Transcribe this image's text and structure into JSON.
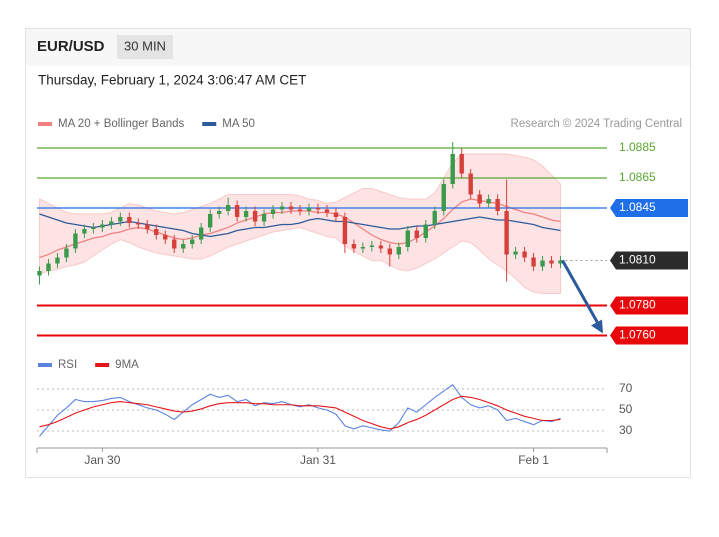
{
  "header": {
    "symbol": "EUR/USD",
    "interval": "30 MIN",
    "timestamp": "Thursday, February 1, 2024 3:06:47 AM CET"
  },
  "credit": "Research © 2024 Trading Central",
  "chart_data": [
    {
      "type": "candlestick",
      "categories": [
        null,
        null,
        null,
        null,
        null,
        null,
        null,
        "Jan 30",
        null,
        null,
        null,
        null,
        null,
        null,
        null,
        null,
        null,
        null,
        null,
        null,
        null,
        null,
        null,
        null,
        null,
        null,
        null,
        null,
        null,
        null,
        null,
        "Jan 31",
        null,
        null,
        null,
        null,
        null,
        null,
        null,
        null,
        null,
        null,
        null,
        null,
        null,
        null,
        null,
        null,
        null,
        null,
        null,
        null,
        null,
        null,
        null,
        "Feb 1",
        null,
        null,
        null
      ],
      "open": [
        1.08,
        1.0803,
        1.0808,
        1.0812,
        1.0818,
        1.0828,
        1.0831,
        1.0832,
        1.0834,
        1.0836,
        1.0839,
        1.0835,
        1.0834,
        1.0831,
        1.0827,
        1.0824,
        1.0818,
        1.0821,
        1.0824,
        1.0832,
        1.0841,
        1.0843,
        1.0847,
        1.0839,
        1.0843,
        1.0836,
        1.0841,
        1.0844,
        1.0846,
        1.0844,
        1.0843,
        1.0845,
        1.0844,
        1.0842,
        1.0839,
        1.0821,
        1.0818,
        1.0819,
        1.082,
        1.0818,
        1.0814,
        1.0819,
        1.083,
        1.0825,
        1.0834,
        1.0843,
        1.0861,
        1.0881,
        1.0868,
        1.0854,
        1.0848,
        1.0851,
        1.0843,
        1.0814,
        1.0816,
        1.0812,
        1.0806,
        1.081,
        1.0808
      ],
      "high": [
        1.0806,
        1.0811,
        1.0815,
        1.0821,
        1.0831,
        1.0834,
        1.0835,
        1.0837,
        1.0839,
        1.0842,
        1.0842,
        1.0838,
        1.0837,
        1.0834,
        1.083,
        1.0827,
        1.0824,
        1.0827,
        1.0835,
        1.0844,
        1.0846,
        1.0852,
        1.085,
        1.0846,
        1.0846,
        1.0844,
        1.0847,
        1.0849,
        1.0849,
        1.0847,
        1.0848,
        1.0848,
        1.0847,
        1.0845,
        1.0842,
        1.0824,
        1.0822,
        1.0823,
        1.0823,
        1.0821,
        1.0822,
        1.0833,
        1.0833,
        1.0837,
        1.0846,
        1.0864,
        1.0889,
        1.0885,
        1.0871,
        1.0857,
        1.0854,
        1.0854,
        1.0864,
        1.0819,
        1.0819,
        1.0815,
        1.0813,
        1.0813,
        1.0813
      ],
      "low": [
        1.0794,
        1.08,
        1.0805,
        1.0809,
        1.0815,
        1.0825,
        1.0828,
        1.0829,
        1.0831,
        1.0833,
        1.0832,
        1.0831,
        1.0828,
        1.0824,
        1.0821,
        1.0815,
        1.0815,
        1.0818,
        1.0821,
        1.0829,
        1.0838,
        1.084,
        1.0836,
        1.0836,
        1.0833,
        1.0833,
        1.0838,
        1.0841,
        1.0841,
        1.084,
        1.084,
        1.0841,
        1.0839,
        1.0836,
        1.0815,
        1.0815,
        1.0815,
        1.0816,
        1.0815,
        1.0806,
        1.0811,
        1.0816,
        1.0822,
        1.0822,
        1.0831,
        1.084,
        1.0858,
        1.0865,
        1.0851,
        1.0845,
        1.0845,
        1.084,
        1.0796,
        1.0811,
        1.0809,
        1.0803,
        1.0803,
        1.0805,
        1.0805
      ],
      "close": [
        1.0803,
        1.0808,
        1.0812,
        1.0818,
        1.0828,
        1.0831,
        1.0832,
        1.0834,
        1.0836,
        1.0839,
        1.0835,
        1.0834,
        1.0831,
        1.0827,
        1.0824,
        1.0818,
        1.0821,
        1.0824,
        1.0832,
        1.0841,
        1.0843,
        1.0847,
        1.0839,
        1.0843,
        1.0836,
        1.0841,
        1.0844,
        1.0846,
        1.0844,
        1.0843,
        1.0845,
        1.0844,
        1.0842,
        1.0839,
        1.0821,
        1.0818,
        1.0819,
        1.082,
        1.0818,
        1.0814,
        1.0819,
        1.083,
        1.0825,
        1.0834,
        1.0843,
        1.0861,
        1.0881,
        1.0868,
        1.0854,
        1.0848,
        1.0851,
        1.0843,
        1.0814,
        1.0816,
        1.0812,
        1.0806,
        1.081,
        1.0808,
        1.081
      ],
      "up_color": "#3c9a4c",
      "down_color": "#d6403a",
      "series": [
        {
          "name": "MA 20 + Bollinger Bands",
          "color": "#f07f7f",
          "band_color": "#fde3e3",
          "values": [
            1.0812,
            1.0814,
            1.0817,
            1.0819,
            1.0821,
            1.0823,
            1.0825,
            1.0826,
            1.0828,
            1.0829,
            1.0831,
            1.0832,
            1.0831,
            1.0829,
            1.0827,
            1.0825,
            1.0824,
            1.0825,
            1.0827,
            1.0828,
            1.083,
            1.0832,
            1.0835,
            1.0837,
            1.0839,
            1.0841,
            1.0842,
            1.0842,
            1.0843,
            1.0843,
            1.0843,
            1.0842,
            1.0842,
            1.0841,
            1.0839,
            1.0835,
            1.0831,
            1.0827,
            1.0824,
            1.0822,
            1.0821,
            1.0822,
            1.0825,
            1.0829,
            1.0833,
            1.0838,
            1.0844,
            1.0849,
            1.0851,
            1.085,
            1.0849,
            1.0848,
            1.0846,
            1.0844,
            1.0842,
            1.0841,
            1.0839,
            1.0837,
            1.0836
          ],
          "upper": [
            1.0851,
            1.0848,
            1.0845,
            1.0842,
            1.0841,
            1.0841,
            1.0841,
            1.0841,
            1.0842,
            1.0845,
            1.0848,
            1.0847,
            1.0845,
            1.0843,
            1.0842,
            1.0841,
            1.0842,
            1.0844,
            1.0846,
            1.0848,
            1.0851,
            1.0854,
            1.0854,
            1.0854,
            1.0854,
            1.0854,
            1.0854,
            1.0854,
            1.0854,
            1.0853,
            1.0851,
            1.085,
            1.0848,
            1.0849,
            1.0852,
            1.0855,
            1.0858,
            1.0858,
            1.0856,
            1.0854,
            1.0852,
            1.0851,
            1.0851,
            1.0851,
            1.0855,
            1.0865,
            1.0875,
            1.0881,
            1.0881,
            1.0881,
            1.0881,
            1.0881,
            1.0881,
            1.088,
            1.0879,
            1.0877,
            1.0873,
            1.0867,
            1.0861
          ],
          "lower": [
            1.0801,
            1.0803,
            1.0804,
            1.0806,
            1.0807,
            1.0809,
            1.0813,
            1.0817,
            1.0821,
            1.0824,
            1.0822,
            1.0819,
            1.0817,
            1.0815,
            1.0814,
            1.0813,
            1.0812,
            1.0811,
            1.0811,
            1.0813,
            1.0816,
            1.0819,
            1.0821,
            1.0823,
            1.0825,
            1.0827,
            1.0829,
            1.083,
            1.0831,
            1.0832,
            1.083,
            1.0828,
            1.0826,
            1.0825,
            1.082,
            1.0816,
            1.0813,
            1.081,
            1.081,
            1.0807,
            1.0804,
            1.0803,
            1.0805,
            1.0808,
            1.0811,
            1.0815,
            1.0819,
            1.0823,
            1.0822,
            1.0817,
            1.0811,
            1.0807,
            1.0803,
            1.0798,
            1.0792,
            1.0789,
            1.0788,
            1.0788,
            1.0788
          ]
        },
        {
          "name": "MA 50",
          "color": "#2d5a9a",
          "values": [
            1.0841,
            1.0839,
            1.0837,
            1.0835,
            1.0834,
            1.0833,
            1.0832,
            1.0833,
            1.0834,
            1.0835,
            1.0836,
            1.0835,
            1.0834,
            1.0833,
            1.0832,
            1.0831,
            1.083,
            1.0828,
            1.0827,
            1.0826,
            1.0827,
            1.0828,
            1.083,
            1.0831,
            1.0832,
            1.0832,
            1.0833,
            1.0834,
            1.0834,
            1.0835,
            1.0837,
            1.0838,
            1.0837,
            1.0836,
            1.0836,
            1.0835,
            1.0834,
            1.0833,
            1.0832,
            1.0831,
            1.0831,
            1.0832,
            1.0833,
            1.0833,
            1.0834,
            1.0835,
            1.0836,
            1.0837,
            1.0838,
            1.0839,
            1.0838,
            1.0837,
            1.0837,
            1.0836,
            1.0835,
            1.0834,
            1.0832,
            1.0831,
            1.083
          ]
        }
      ],
      "levels": [
        {
          "value": 1.0885,
          "color": "#5aa832",
          "box": false,
          "dashed": false
        },
        {
          "value": 1.0865,
          "color": "#5aa832",
          "box": false,
          "dashed": false
        },
        {
          "value": 1.0845,
          "color": "#1f6ee8",
          "box": true,
          "dashed": false
        },
        {
          "value": 1.081,
          "label": "1.0810",
          "color": "#2b2b2b",
          "box": true,
          "dashed": true
        },
        {
          "value": 1.078,
          "label": "1.0780",
          "color": "#e8060a",
          "box": true,
          "dashed": false
        },
        {
          "value": 1.076,
          "label": "1.0760",
          "color": "#e8060a",
          "box": true,
          "dashed": false
        }
      ],
      "ylim": [
        1.0753,
        1.0891
      ]
    },
    {
      "type": "line",
      "series": [
        {
          "name": "RSI",
          "color": "#5b84e0",
          "values": [
            25,
            35,
            45,
            52,
            60,
            58,
            58,
            59,
            61,
            62,
            58,
            55,
            52,
            50,
            46,
            41,
            48,
            55,
            60,
            65,
            62,
            64,
            58,
            60,
            54,
            57,
            56,
            58,
            55,
            53,
            55,
            52,
            50,
            46,
            35,
            32,
            35,
            33,
            31,
            30,
            38,
            52,
            48,
            55,
            62,
            68,
            74,
            62,
            55,
            52,
            54,
            50,
            40,
            42,
            39,
            36,
            40,
            39,
            42
          ]
        },
        {
          "name": "9MA",
          "color": "#e3161a",
          "values": [
            34,
            36,
            39,
            43,
            47,
            50,
            53,
            55,
            57,
            58,
            57,
            56,
            55,
            53,
            51,
            49,
            48,
            49,
            51,
            54,
            56,
            57,
            57,
            57,
            56,
            56,
            55,
            55,
            55,
            54,
            54,
            54,
            53,
            52,
            48,
            44,
            40,
            37,
            34,
            32,
            34,
            38,
            41,
            45,
            50,
            55,
            60,
            63,
            62,
            60,
            57,
            54,
            50,
            47,
            44,
            42,
            40,
            40,
            41
          ]
        }
      ],
      "ylim": [
        20,
        80
      ],
      "yticks": [
        70,
        50,
        30
      ],
      "grid": true
    }
  ]
}
